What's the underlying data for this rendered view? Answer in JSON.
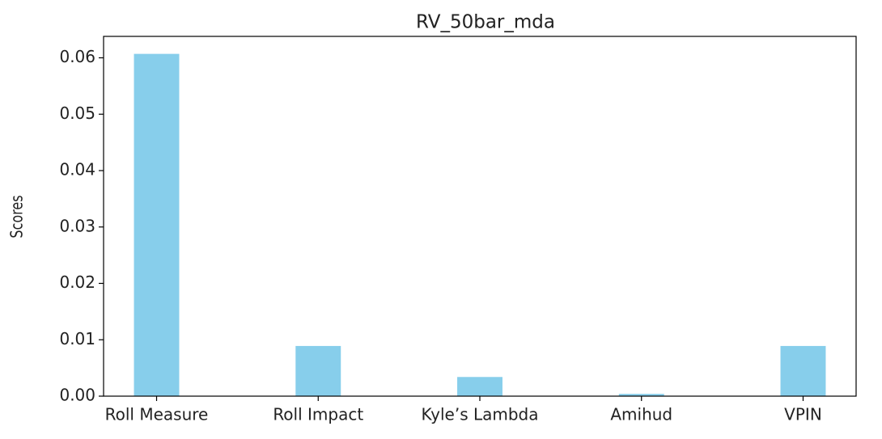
{
  "chart_data": {
    "type": "bar",
    "title": "RV_50bar_mda",
    "ylabel": "Scores",
    "categories": [
      "Roll Measure",
      "Roll Impact",
      "Kyle’s Lambda",
      "Amihud",
      "VPIN"
    ],
    "values": [
      0.0607,
      0.0089,
      0.0034,
      0.0004,
      0.0089
    ],
    "color": "#87ceeb",
    "ylim": [
      0,
      0.0638
    ],
    "yticks": [
      {
        "value": 0,
        "label": "0.00"
      },
      0.01,
      0.02,
      0.03,
      0.04,
      0.05,
      0.06
    ]
  }
}
